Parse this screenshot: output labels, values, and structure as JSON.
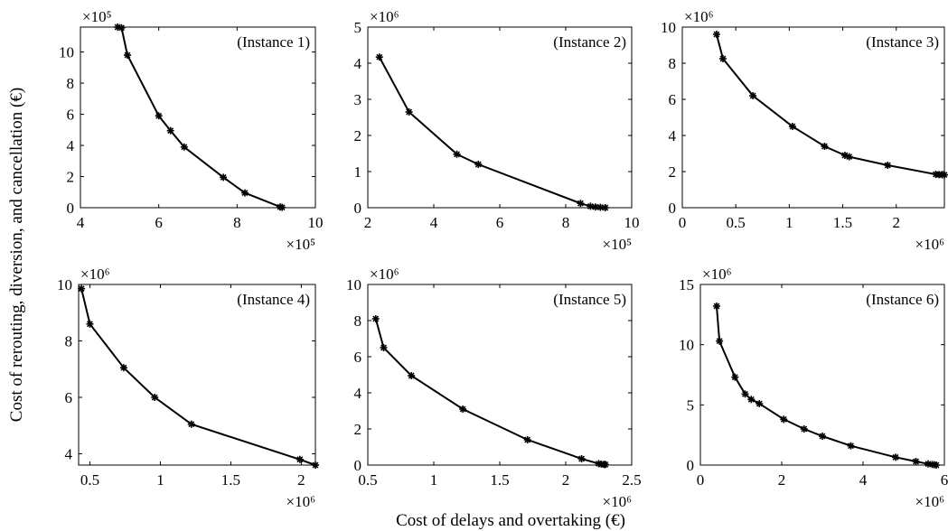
{
  "figure": {
    "ylabel": "Cost of rerouting, diversion, and cancellation (€)",
    "xlabel": "Cost of delays and overtaking (€)"
  },
  "chart_data": [
    {
      "type": "line",
      "title": "(Instance 1)",
      "xlim": [
        4,
        10
      ],
      "ylim": [
        0,
        11.6
      ],
      "xticks": [
        "4",
        "6",
        "8",
        "10"
      ],
      "yticks": [
        "0",
        "2",
        "4",
        "6",
        "8",
        "10"
      ],
      "xexp": "×10⁵",
      "yexp": "×10⁵",
      "x": [
        4.95,
        5.05,
        5.2,
        6.0,
        6.3,
        6.65,
        7.65,
        8.2,
        9.1,
        9.15
      ],
      "y": [
        11.6,
        11.55,
        9.8,
        5.9,
        4.95,
        3.9,
        1.95,
        0.95,
        0.05,
        0.02
      ]
    },
    {
      "type": "line",
      "title": "(Instance 2)",
      "xlim": [
        2,
        10
      ],
      "ylim": [
        0,
        5
      ],
      "xticks": [
        "2",
        "4",
        "6",
        "8",
        "10"
      ],
      "yticks": [
        "0",
        "1",
        "2",
        "3",
        "4",
        "5"
      ],
      "xexp": "×10⁵",
      "yexp": "×10⁶",
      "x": [
        2.35,
        3.25,
        4.7,
        5.35,
        8.45,
        8.75,
        8.9,
        9.05,
        9.2
      ],
      "y": [
        4.17,
        2.65,
        1.48,
        1.2,
        0.12,
        0.04,
        0.02,
        0.01,
        0.0
      ]
    },
    {
      "type": "line",
      "title": "(Instance 3)",
      "xlim": [
        0,
        2.45
      ],
      "ylim": [
        0,
        10
      ],
      "xticks": [
        "0",
        "0.5",
        "1",
        "1.5",
        "2"
      ],
      "yticks": [
        "0",
        "2",
        "4",
        "6",
        "8",
        "10"
      ],
      "xexp": "×10⁶",
      "yexp": "×10⁶",
      "x": [
        0.32,
        0.38,
        0.66,
        1.03,
        1.33,
        1.52,
        1.56,
        1.92,
        2.37,
        2.4,
        2.43,
        2.45
      ],
      "y": [
        9.6,
        8.25,
        6.2,
        4.5,
        3.4,
        2.9,
        2.82,
        2.35,
        1.85,
        1.83,
        1.82,
        1.82
      ]
    },
    {
      "type": "line",
      "title": "(Instance 4)",
      "xlim": [
        0.42,
        2.1
      ],
      "ylim": [
        3.6,
        10
      ],
      "xticks": [
        "0.5",
        "1",
        "1.5",
        "2"
      ],
      "yticks": [
        "4",
        "6",
        "8",
        "10"
      ],
      "xexp": "×10⁶",
      "yexp": "×10⁶",
      "x": [
        0.44,
        0.5,
        0.74,
        0.96,
        1.22,
        1.99,
        2.1
      ],
      "y": [
        9.85,
        8.6,
        7.05,
        6.0,
        5.05,
        3.8,
        3.6
      ]
    },
    {
      "type": "line",
      "title": "(Instance 5)",
      "xlim": [
        0.5,
        2.5
      ],
      "ylim": [
        0,
        10
      ],
      "xticks": [
        "0.5",
        "1",
        "1.5",
        "2",
        "2.5"
      ],
      "yticks": [
        "0",
        "2",
        "4",
        "6",
        "8",
        "10"
      ],
      "xexp": "×10⁶",
      "yexp": "×10⁶",
      "x": [
        0.56,
        0.62,
        0.83,
        1.22,
        1.71,
        2.12,
        2.25,
        2.27,
        2.29,
        2.3
      ],
      "y": [
        8.1,
        6.5,
        4.95,
        3.1,
        1.4,
        0.35,
        0.08,
        0.05,
        0.04,
        0.03
      ]
    },
    {
      "type": "line",
      "title": "(Instance 6)",
      "xlim": [
        0,
        6
      ],
      "ylim": [
        0,
        15
      ],
      "xticks": [
        "0",
        "2",
        "4",
        "6"
      ],
      "yticks": [
        "0",
        "5",
        "10",
        "15"
      ],
      "xexp": "×10⁶",
      "yexp": "×10⁶",
      "x": [
        0.4,
        0.47,
        0.85,
        1.1,
        1.25,
        1.45,
        2.05,
        2.55,
        3.0,
        3.7,
        4.8,
        5.3,
        5.6,
        5.7,
        5.75,
        5.8
      ],
      "y": [
        13.2,
        10.3,
        7.3,
        5.9,
        5.45,
        5.1,
        3.8,
        3.0,
        2.4,
        1.6,
        0.65,
        0.3,
        0.1,
        0.05,
        0.03,
        0.0
      ]
    }
  ]
}
